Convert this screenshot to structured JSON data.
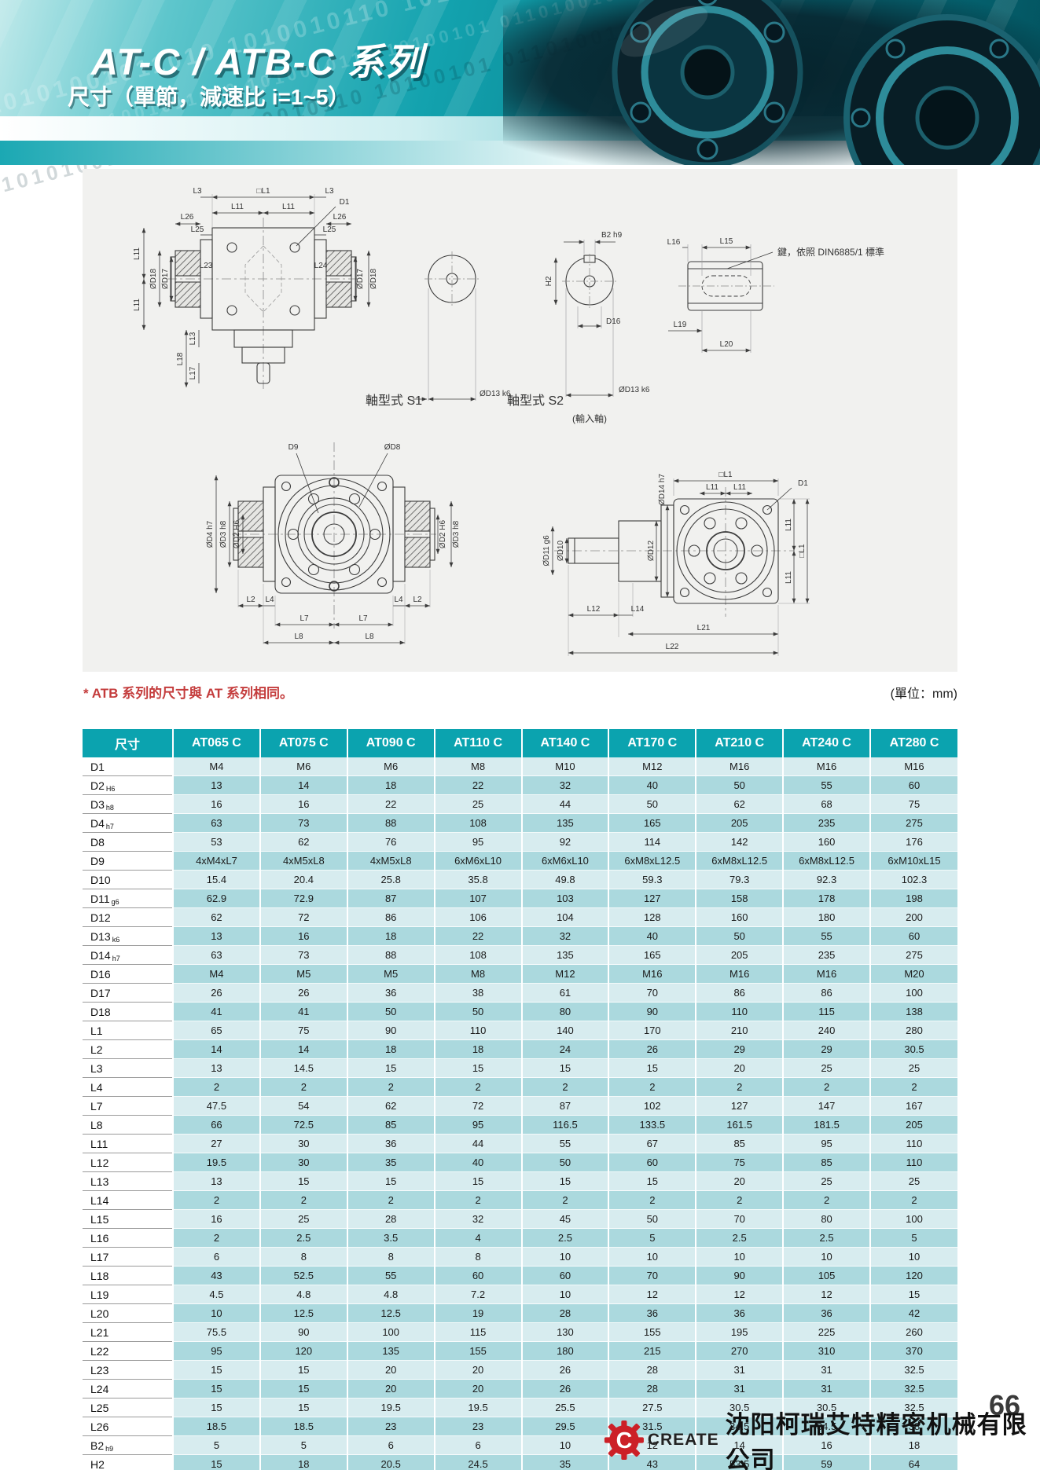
{
  "header": {
    "title": "AT-C / ATB-C 系列",
    "subtitle": "尺寸（單節，減速比 i=1~5）",
    "binary_pattern": "10101001011010 1010010110 10100101 0110100101"
  },
  "note": {
    "text": "* ATB 系列的尺寸與 AT 系列相同。",
    "unit": "(單位：mm)"
  },
  "diagram": {
    "labels": {
      "boxL1": "□L1",
      "L3": "L3",
      "D1": "D1",
      "L11": "L11",
      "L26": "L26",
      "L25": "L25",
      "L23": "L23",
      "L24": "L24",
      "dD17": "ØD17",
      "dD18": "ØD18",
      "L18": "L18",
      "L13": "L13",
      "L17": "L17",
      "shaftS1": "軸型式 S1",
      "shaftS2": "軸型式 S2",
      "dD13k6": "ØD13 k6",
      "B2h9": "B2 h9",
      "H2": "H2",
      "D16": "D16",
      "inputShaft": "(輸入軸)",
      "L16": "L16",
      "L15": "L15",
      "L19": "L19",
      "L20": "L20",
      "keyNote": "鍵，依照 DIN6885/1 標準",
      "D9": "D9",
      "dD8": "ØD8",
      "dD4h7": "ØD4 h7",
      "dD3h8": "ØD3 h8",
      "dD2H6": "ØD2 H6",
      "L2": "L2",
      "L4": "L4",
      "L7": "L7",
      "L8": "L8",
      "dD14h7": "ØD14 h7",
      "dD11g6": "ØD11 g6",
      "dD10": "ØD10",
      "dD12": "ØD12",
      "L12": "L12",
      "L14": "L14",
      "L21": "L21",
      "L22": "L22"
    }
  },
  "table": {
    "columns": [
      "尺寸",
      "AT065 C",
      "AT075 C",
      "AT090 C",
      "AT110 C",
      "AT140 C",
      "AT170 C",
      "AT210 C",
      "AT240 C",
      "AT280 C"
    ],
    "rows": [
      {
        "label": "D1",
        "sub": "",
        "values": [
          "M4",
          "M6",
          "M6",
          "M8",
          "M10",
          "M12",
          "M16",
          "M16",
          "M16"
        ]
      },
      {
        "label": "D2",
        "sub": "H6",
        "values": [
          "13",
          "14",
          "18",
          "22",
          "32",
          "40",
          "50",
          "55",
          "60"
        ]
      },
      {
        "label": "D3",
        "sub": "h8",
        "values": [
          "16",
          "16",
          "22",
          "25",
          "44",
          "50",
          "62",
          "68",
          "75"
        ]
      },
      {
        "label": "D4",
        "sub": "h7",
        "values": [
          "63",
          "73",
          "88",
          "108",
          "135",
          "165",
          "205",
          "235",
          "275"
        ]
      },
      {
        "label": "D8",
        "sub": "",
        "values": [
          "53",
          "62",
          "76",
          "95",
          "92",
          "114",
          "142",
          "160",
          "176"
        ]
      },
      {
        "label": "D9",
        "sub": "",
        "values": [
          "4xM4xL7",
          "4xM5xL8",
          "4xM5xL8",
          "6xM6xL10",
          "6xM6xL10",
          "6xM8xL12.5",
          "6xM8xL12.5",
          "6xM8xL12.5",
          "6xM10xL15"
        ]
      },
      {
        "label": "D10",
        "sub": "",
        "values": [
          "15.4",
          "20.4",
          "25.8",
          "35.8",
          "49.8",
          "59.3",
          "79.3",
          "92.3",
          "102.3"
        ]
      },
      {
        "label": "D11",
        "sub": "g6",
        "values": [
          "62.9",
          "72.9",
          "87",
          "107",
          "103",
          "127",
          "158",
          "178",
          "198"
        ]
      },
      {
        "label": "D12",
        "sub": "",
        "values": [
          "62",
          "72",
          "86",
          "106",
          "104",
          "128",
          "160",
          "180",
          "200"
        ]
      },
      {
        "label": "D13",
        "sub": "k6",
        "values": [
          "13",
          "16",
          "18",
          "22",
          "32",
          "40",
          "50",
          "55",
          "60"
        ]
      },
      {
        "label": "D14",
        "sub": "h7",
        "values": [
          "63",
          "73",
          "88",
          "108",
          "135",
          "165",
          "205",
          "235",
          "275"
        ]
      },
      {
        "label": "D16",
        "sub": "",
        "values": [
          "M4",
          "M5",
          "M5",
          "M8",
          "M12",
          "M16",
          "M16",
          "M16",
          "M20"
        ]
      },
      {
        "label": "D17",
        "sub": "",
        "values": [
          "26",
          "26",
          "36",
          "38",
          "61",
          "70",
          "86",
          "86",
          "100"
        ]
      },
      {
        "label": "D18",
        "sub": "",
        "values": [
          "41",
          "41",
          "50",
          "50",
          "80",
          "90",
          "110",
          "115",
          "138"
        ]
      },
      {
        "label": "L1",
        "sub": "",
        "values": [
          "65",
          "75",
          "90",
          "110",
          "140",
          "170",
          "210",
          "240",
          "280"
        ]
      },
      {
        "label": "L2",
        "sub": "",
        "values": [
          "14",
          "14",
          "18",
          "18",
          "24",
          "26",
          "29",
          "29",
          "30.5"
        ]
      },
      {
        "label": "L3",
        "sub": "",
        "values": [
          "13",
          "14.5",
          "15",
          "15",
          "15",
          "15",
          "20",
          "25",
          "25"
        ]
      },
      {
        "label": "L4",
        "sub": "",
        "values": [
          "2",
          "2",
          "2",
          "2",
          "2",
          "2",
          "2",
          "2",
          "2"
        ]
      },
      {
        "label": "L7",
        "sub": "",
        "values": [
          "47.5",
          "54",
          "62",
          "72",
          "87",
          "102",
          "127",
          "147",
          "167"
        ]
      },
      {
        "label": "L8",
        "sub": "",
        "values": [
          "66",
          "72.5",
          "85",
          "95",
          "116.5",
          "133.5",
          "161.5",
          "181.5",
          "205"
        ]
      },
      {
        "label": "L11",
        "sub": "",
        "values": [
          "27",
          "30",
          "36",
          "44",
          "55",
          "67",
          "85",
          "95",
          "110"
        ]
      },
      {
        "label": "L12",
        "sub": "",
        "values": [
          "19.5",
          "30",
          "35",
          "40",
          "50",
          "60",
          "75",
          "85",
          "110"
        ]
      },
      {
        "label": "L13",
        "sub": "",
        "values": [
          "13",
          "15",
          "15",
          "15",
          "15",
          "15",
          "20",
          "25",
          "25"
        ]
      },
      {
        "label": "L14",
        "sub": "",
        "values": [
          "2",
          "2",
          "2",
          "2",
          "2",
          "2",
          "2",
          "2",
          "2"
        ]
      },
      {
        "label": "L15",
        "sub": "",
        "values": [
          "16",
          "25",
          "28",
          "32",
          "45",
          "50",
          "70",
          "80",
          "100"
        ]
      },
      {
        "label": "L16",
        "sub": "",
        "values": [
          "2",
          "2.5",
          "3.5",
          "4",
          "2.5",
          "5",
          "2.5",
          "2.5",
          "5"
        ]
      },
      {
        "label": "L17",
        "sub": "",
        "values": [
          "6",
          "8",
          "8",
          "8",
          "10",
          "10",
          "10",
          "10",
          "10"
        ]
      },
      {
        "label": "L18",
        "sub": "",
        "values": [
          "43",
          "52.5",
          "55",
          "60",
          "60",
          "70",
          "90",
          "105",
          "120"
        ]
      },
      {
        "label": "L19",
        "sub": "",
        "values": [
          "4.5",
          "4.8",
          "4.8",
          "7.2",
          "10",
          "12",
          "12",
          "12",
          "15"
        ]
      },
      {
        "label": "L20",
        "sub": "",
        "values": [
          "10",
          "12.5",
          "12.5",
          "19",
          "28",
          "36",
          "36",
          "36",
          "42"
        ]
      },
      {
        "label": "L21",
        "sub": "",
        "values": [
          "75.5",
          "90",
          "100",
          "115",
          "130",
          "155",
          "195",
          "225",
          "260"
        ]
      },
      {
        "label": "L22",
        "sub": "",
        "values": [
          "95",
          "120",
          "135",
          "155",
          "180",
          "215",
          "270",
          "310",
          "370"
        ]
      },
      {
        "label": "L23",
        "sub": "",
        "values": [
          "15",
          "15",
          "20",
          "20",
          "26",
          "28",
          "31",
          "31",
          "32.5"
        ]
      },
      {
        "label": "L24",
        "sub": "",
        "values": [
          "15",
          "15",
          "20",
          "20",
          "26",
          "28",
          "31",
          "31",
          "32.5"
        ]
      },
      {
        "label": "L25",
        "sub": "",
        "values": [
          "15",
          "15",
          "19.5",
          "19.5",
          "25.5",
          "27.5",
          "30.5",
          "30.5",
          "32.5"
        ]
      },
      {
        "label": "L26",
        "sub": "",
        "values": [
          "18.5",
          "18.5",
          "23",
          "23",
          "29.5",
          "31.5",
          "34.5",
          "34.5",
          "38"
        ]
      },
      {
        "label": "B2",
        "sub": "h9",
        "values": [
          "5",
          "5",
          "6",
          "6",
          "10",
          "12",
          "14",
          "16",
          "18"
        ]
      },
      {
        "label": "H2",
        "sub": "",
        "values": [
          "15",
          "18",
          "20.5",
          "24.5",
          "35",
          "43",
          "53.5",
          "59",
          "64"
        ]
      }
    ]
  },
  "footer": {
    "logo_letter": "C",
    "brand": "CREATE",
    "company": "沈阳柯瑞艾特精密机械有限公司",
    "page": "66"
  }
}
